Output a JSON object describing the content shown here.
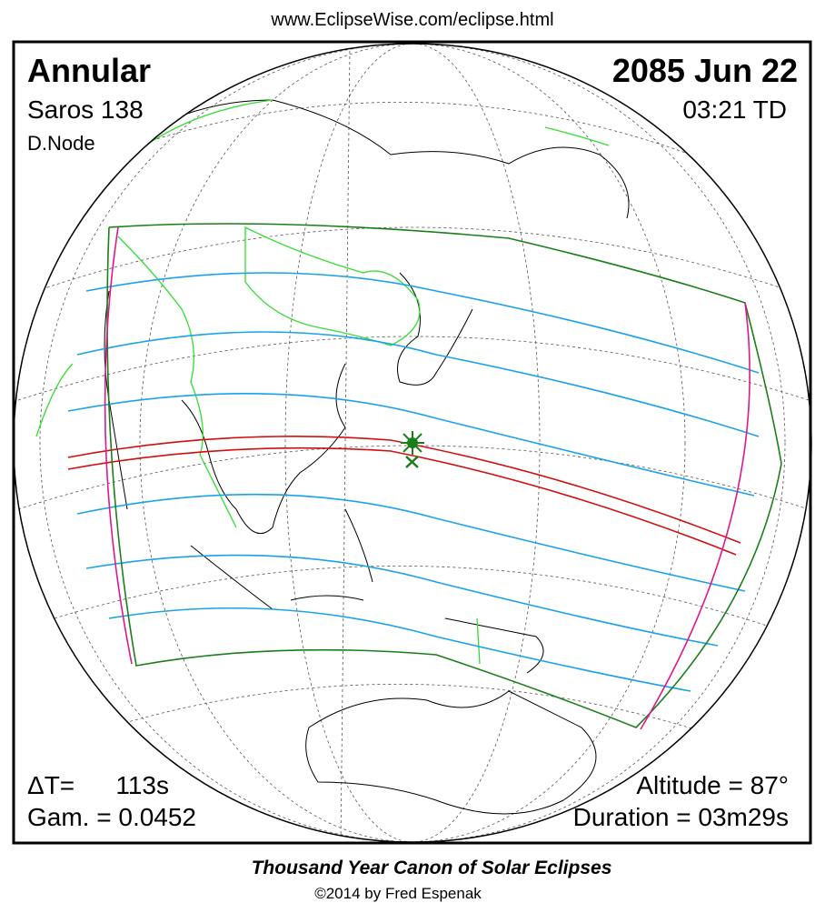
{
  "header": {
    "url": "www.EclipseWise.com/eclipse.html"
  },
  "panel": {
    "type": "Annular",
    "saros": "Saros 138",
    "node": "D.Node",
    "date": "2085 Jun 22",
    "time": "03:21 TD",
    "delta_t_label": "ΔT=",
    "delta_t": "113s",
    "gamma": "Gam. = 0.0452",
    "altitude": "Altitude = 87°",
    "duration": "Duration = 03m29s"
  },
  "footer": {
    "title": "Thousand Year Canon of Solar Eclipses",
    "credit": "©2014 by Fred Espenak"
  }
}
